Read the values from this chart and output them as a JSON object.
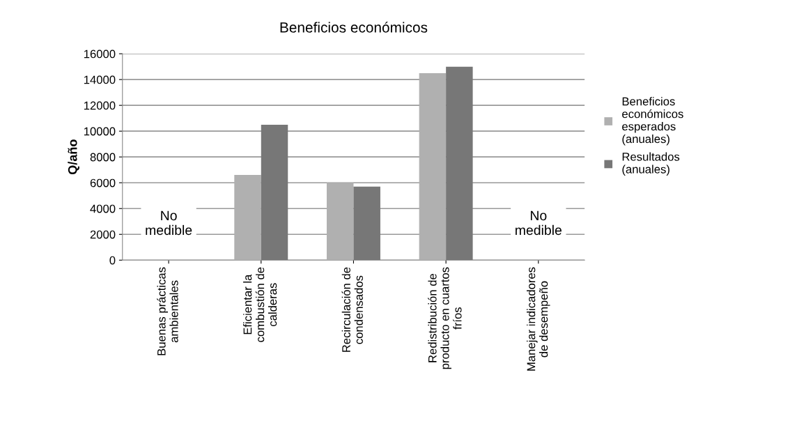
{
  "chart_data": {
    "type": "bar",
    "title": "Beneficios económicos",
    "ylabel": "Q/año",
    "categories": [
      "Buenas prácticas\nambientales",
      "Eficientar la\ncombustión de\ncalderas",
      "Recirculación de\ncondensados",
      "Redistribución de\nproducto en cuartos\nfríos",
      "Manejar indicadores\nde desempeño"
    ],
    "series": [
      {
        "name": "Beneficios\neconómicos\nesperados\n(anuales)",
        "color": "#b0b0b0",
        "values": [
          null,
          6600,
          6000,
          14500,
          null
        ]
      },
      {
        "name": "Resultados\n(anuales)",
        "color": "#777777",
        "values": [
          null,
          10500,
          5700,
          15000,
          null
        ]
      }
    ],
    "annotations": [
      "No\nmedible",
      "No\nmedible"
    ],
    "ylim": [
      0,
      16000
    ],
    "yticks": [
      0,
      2000,
      4000,
      6000,
      8000,
      10000,
      12000,
      14000,
      16000
    ],
    "grid": "y",
    "legend": "right"
  }
}
